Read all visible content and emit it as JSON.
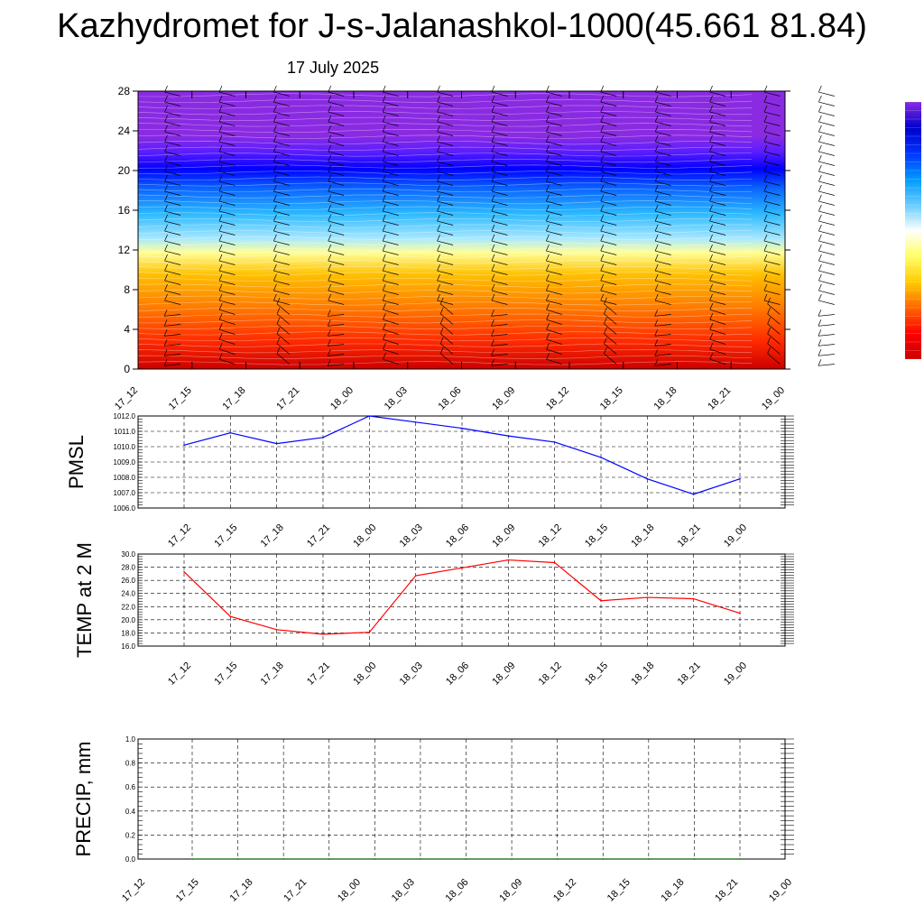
{
  "header": {
    "title": "Kazhydromet for J-s-Jalanashkol-1000(45.661 81.84)",
    "subtitle": "17 July 2025"
  },
  "colors": {
    "pmsl_line": "#0000ff",
    "temp_line": "#ff0000",
    "precip_line": "#006400",
    "grid": "#000000"
  },
  "chart_data": [
    {
      "type": "heatmap",
      "name": "vertical-profile",
      "x": [
        "17_12",
        "17_15",
        "17_18",
        "17_21",
        "18_00",
        "18_03",
        "18_06",
        "18_09",
        "18_12",
        "18_15",
        "18_18",
        "18_21",
        "19_00"
      ],
      "ylim": [
        0,
        28
      ],
      "yticks": [
        "0",
        "4",
        "8",
        "12",
        "16",
        "20",
        "24",
        "28"
      ],
      "colormap": [
        "#cc0000",
        "#ff2a00",
        "#ff7a00",
        "#ffc000",
        "#ffff99",
        "#a8e8ff",
        "#2ab8ff",
        "#0a64ff",
        "#0000ff",
        "#5a1cff",
        "#8a2be2"
      ],
      "overlay": "wind barbs and contour lines",
      "colorbar_colors": [
        "#cc0000",
        "#ff0000",
        "#ff6600",
        "#ffcc00",
        "#ffff66",
        "#ffffff",
        "#66ccff",
        "#0099ff",
        "#0033ff",
        "#0000cc",
        "#8a2be2"
      ]
    },
    {
      "type": "line",
      "name": "pmsl",
      "ylabel": "PMSL",
      "ylim": [
        1006.0,
        1012.0
      ],
      "yticks": [
        "1006.0",
        "1007.0",
        "1008.0",
        "1009.0",
        "1010.0",
        "1011.0",
        "1012.0"
      ],
      "x": [
        "17_12",
        "17_15",
        "17_18",
        "17_21",
        "18_00",
        "18_03",
        "18_06",
        "18_09",
        "18_12",
        "18_15",
        "18_18",
        "18_21",
        "19_00"
      ],
      "values": [
        1010.1,
        1010.9,
        1010.2,
        1010.6,
        1012.0,
        1011.6,
        1011.2,
        1010.7,
        1010.3,
        1009.3,
        1007.9,
        1006.9,
        1007.9
      ]
    },
    {
      "type": "line",
      "name": "temp2m",
      "ylabel": "TEMP at 2 M",
      "ylim": [
        16.0,
        30.0
      ],
      "yticks": [
        "16.0",
        "18.0",
        "20.0",
        "22.0",
        "24.0",
        "26.0",
        "28.0",
        "30.0"
      ],
      "x": [
        "17_12",
        "17_15",
        "17_18",
        "17_21",
        "18_00",
        "18_03",
        "18_06",
        "18_09",
        "18_12",
        "18_15",
        "18_18",
        "18_21",
        "19_00"
      ],
      "values": [
        27.3,
        20.5,
        18.5,
        17.8,
        18.1,
        26.7,
        27.9,
        29.1,
        28.7,
        22.9,
        23.4,
        23.2,
        21.0
      ]
    },
    {
      "type": "line",
      "name": "precip",
      "ylabel": "PRECIP, mm",
      "ylim": [
        0.0,
        1.0
      ],
      "yticks": [
        "0.0",
        "0.2",
        "0.4",
        "0.6",
        "0.8",
        "1.0"
      ],
      "x": [
        "17_12",
        "17_15",
        "17_18",
        "17_21",
        "18_00",
        "18_03",
        "18_06",
        "18_09",
        "18_12",
        "18_15",
        "18_18",
        "18_21",
        "19_00"
      ],
      "values": [
        0,
        0,
        0,
        0,
        0,
        0,
        0,
        0,
        0,
        0,
        0,
        0,
        0
      ]
    }
  ]
}
